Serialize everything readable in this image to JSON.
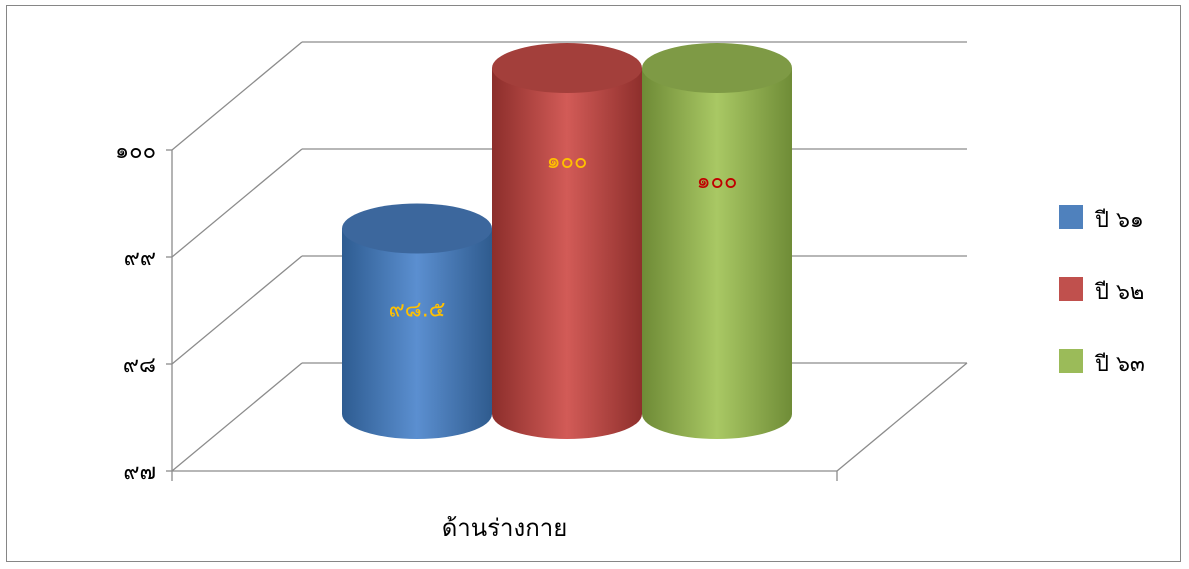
{
  "chart_data": {
    "type": "bar",
    "style": "3d-cylinder",
    "categories": [
      "ด้านร่างกาย"
    ],
    "series": [
      {
        "name": "ปี ๖๑",
        "values": [
          98.5
        ],
        "label": "๙๘.๕",
        "color": "#4F81BD",
        "label_color": "#FFC000"
      },
      {
        "name": "ปี ๖๒",
        "values": [
          100
        ],
        "label": "๑๐๐",
        "color": "#C0504D",
        "label_color": "#FFC000"
      },
      {
        "name": "ปี ๖๓",
        "values": [
          100
        ],
        "label": "๑๐๐",
        "color": "#9BBB59",
        "label_color": "#C00000"
      }
    ],
    "ylim": [
      97,
      100
    ],
    "yticks": [
      97,
      98,
      99,
      100
    ],
    "ytick_labels": [
      "๙๗",
      "๙๘",
      "๙๙",
      "๑๐๐"
    ],
    "grid": true,
    "legend_position": "right",
    "title": "",
    "xlabel": "",
    "ylabel": ""
  }
}
